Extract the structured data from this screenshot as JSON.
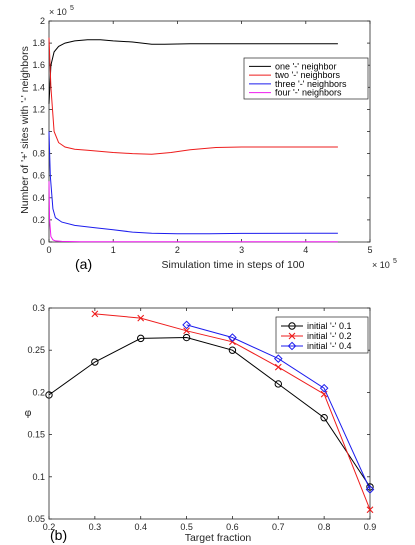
{
  "chart_data": [
    {
      "type": "line",
      "panel_label": "(a)",
      "xlabel": "Simulation time in steps of 100",
      "ylabel": "Number of '+' sites with '-' neighbors",
      "x_exponent": "× 10",
      "x_exponent_power": "5",
      "y_exponent": "× 10",
      "y_exponent_power": "5",
      "xlim": [
        0,
        5
      ],
      "ylim": [
        0,
        2
      ],
      "xticks": [
        "0",
        "1",
        "2",
        "3",
        "4",
        "5"
      ],
      "yticks": [
        "0",
        "0.2",
        "0.4",
        "0.6",
        "0.8",
        "1",
        "1.2",
        "1.4",
        "1.6",
        "1.8",
        "2"
      ],
      "legend_position": "top-right",
      "series": [
        {
          "name": "one '-' neighbor",
          "color": "#000000",
          "x": [
            0,
            0.03,
            0.08,
            0.15,
            0.25,
            0.4,
            0.6,
            0.8,
            1.0,
            1.3,
            1.6,
            1.8,
            2.2,
            3.0,
            4.0,
            4.5
          ],
          "y": [
            1.25,
            1.6,
            1.72,
            1.77,
            1.8,
            1.82,
            1.83,
            1.83,
            1.82,
            1.81,
            1.79,
            1.79,
            1.795,
            1.795,
            1.795,
            1.795
          ]
        },
        {
          "name": "two '-' neighbors",
          "color": "#ee1c1c",
          "x": [
            0,
            0.03,
            0.08,
            0.15,
            0.25,
            0.4,
            0.6,
            0.8,
            1.0,
            1.3,
            1.6,
            1.9,
            2.2,
            2.6,
            3.0,
            3.5,
            4.0,
            4.5
          ],
          "y": [
            1.85,
            1.4,
            1.0,
            0.9,
            0.86,
            0.84,
            0.83,
            0.82,
            0.81,
            0.8,
            0.795,
            0.81,
            0.835,
            0.855,
            0.86,
            0.86,
            0.86,
            0.86
          ]
        },
        {
          "name": "three '-' neighbors",
          "color": "#1c1cee",
          "x": [
            0,
            0.02,
            0.06,
            0.1,
            0.2,
            0.4,
            0.7,
            1.0,
            1.3,
            1.6,
            2.0,
            2.5,
            3.0,
            4.0,
            4.5
          ],
          "y": [
            1.0,
            0.6,
            0.3,
            0.22,
            0.18,
            0.15,
            0.13,
            0.11,
            0.09,
            0.08,
            0.075,
            0.075,
            0.078,
            0.08,
            0.08
          ]
        },
        {
          "name": "four '-' neighbors",
          "color": "#ee1cee",
          "x": [
            0,
            0.01,
            0.03,
            0.06,
            0.1,
            0.2,
            0.5,
            1.0,
            2.0,
            3.0,
            4.0,
            4.5
          ],
          "y": [
            0.55,
            0.2,
            0.05,
            0.02,
            0.01,
            0.005,
            0.003,
            0.003,
            0.003,
            0.003,
            0.003,
            0.003
          ]
        }
      ]
    },
    {
      "type": "line",
      "panel_label": "(b)",
      "xlabel": "Target fraction",
      "ylabel": "φ",
      "xlim": [
        0.2,
        0.9
      ],
      "ylim": [
        0.05,
        0.3
      ],
      "xticks": [
        "0.2",
        "0.3",
        "0.4",
        "0.5",
        "0.6",
        "0.7",
        "0.8",
        "0.9"
      ],
      "yticks": [
        "0.05",
        "0.1",
        "0.15",
        "0.2",
        "0.25",
        "0.3"
      ],
      "legend_position": "top-right",
      "series": [
        {
          "name": "initial '-' 0.1",
          "color": "#000000",
          "marker": "circle",
          "x": [
            0.2,
            0.3,
            0.4,
            0.5,
            0.6,
            0.7,
            0.8,
            0.9
          ],
          "y": [
            0.197,
            0.236,
            0.264,
            0.265,
            0.25,
            0.21,
            0.17,
            0.088
          ]
        },
        {
          "name": "initial '-' 0.2",
          "color": "#ee1c1c",
          "marker": "x",
          "x": [
            0.3,
            0.4,
            0.5,
            0.6,
            0.7,
            0.8,
            0.9
          ],
          "y": [
            0.293,
            0.288,
            0.273,
            0.26,
            0.23,
            0.198,
            0.061
          ]
        },
        {
          "name": "initial '-' 0.4",
          "color": "#1c1cee",
          "marker": "diamond",
          "x": [
            0.5,
            0.6,
            0.7,
            0.8,
            0.9
          ],
          "y": [
            0.28,
            0.265,
            0.24,
            0.205,
            0.085
          ]
        }
      ]
    }
  ]
}
